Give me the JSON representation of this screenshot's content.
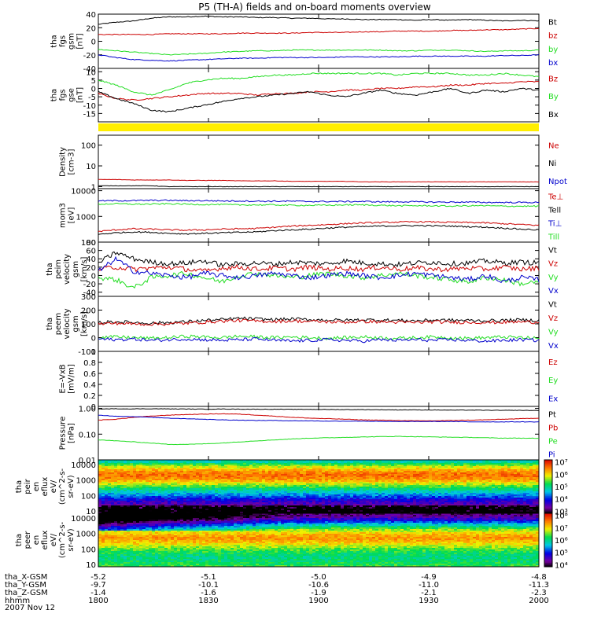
{
  "title": "P5 (TH-A) fields and on-board moments overview",
  "date_label": "2007 Nov 12",
  "colors": {
    "black": "#000000",
    "red": "#cc0000",
    "green": "#22dd22",
    "blue": "#0000cc",
    "yellow": "#ffee00"
  },
  "chart_data": [
    {
      "type": "line",
      "ylabel": [
        "tha",
        "fgs",
        "gsm",
        "[nT]"
      ],
      "ylim": [
        -40,
        40
      ],
      "yscale": "linear",
      "yticks": [
        -40,
        -20,
        0,
        20,
        40
      ],
      "series": [
        {
          "name": "Bt",
          "color": "black",
          "values": [
            25,
            28,
            30,
            34,
            36,
            36,
            37,
            36,
            36,
            35,
            35,
            34,
            34,
            33,
            33,
            32,
            32,
            32,
            31,
            32,
            31,
            32,
            31,
            30,
            31,
            30
          ]
        },
        {
          "name": "bz",
          "color": "red",
          "values": [
            10,
            10,
            10,
            10,
            11,
            11,
            11,
            11,
            12,
            12,
            12,
            12,
            13,
            13,
            13,
            14,
            14,
            15,
            15,
            15,
            16,
            16,
            17,
            17,
            18,
            19
          ]
        },
        {
          "name": "by",
          "color": "green",
          "values": [
            -12,
            -14,
            -16,
            -18,
            -20,
            -19,
            -18,
            -16,
            -15,
            -14,
            -14,
            -13,
            -13,
            -13,
            -13,
            -13,
            -13,
            -14,
            -14,
            -13,
            -13,
            -14,
            -15,
            -14,
            -14,
            -13
          ]
        },
        {
          "name": "bx",
          "color": "blue",
          "values": [
            -20,
            -24,
            -27,
            -28,
            -29,
            -28,
            -27,
            -26,
            -25,
            -25,
            -24,
            -24,
            -24,
            -24,
            -23,
            -23,
            -23,
            -23,
            -22,
            -22,
            -22,
            -22,
            -22,
            -21,
            -21,
            -20
          ]
        }
      ]
    },
    {
      "type": "line",
      "ylabel": [
        "tha",
        "fgs",
        "gse",
        "[nT]"
      ],
      "ylim": [
        -20,
        12
      ],
      "yscale": "linear",
      "yticks": [
        -15,
        -10,
        -5,
        0,
        5,
        10
      ],
      "series": [
        {
          "name": "Bz",
          "color": "red",
          "values": [
            -3,
            -6,
            -7,
            -6,
            -5,
            -4,
            -3,
            -3,
            -3,
            -4,
            -3,
            -3,
            -2,
            -2,
            -1,
            -1,
            0,
            0,
            1,
            1,
            2,
            2,
            3,
            3,
            4,
            4
          ]
        },
        {
          "name": "By",
          "color": "green",
          "values": [
            5,
            2,
            -2,
            -4,
            -1,
            3,
            5,
            6,
            6,
            7,
            8,
            8,
            9,
            9,
            9,
            9,
            9,
            8,
            9,
            9,
            9,
            8,
            8,
            9,
            8,
            7
          ]
        },
        {
          "name": "Bx",
          "color": "black",
          "values": [
            -2,
            -6,
            -9,
            -13,
            -14,
            -12,
            -10,
            -8,
            -6,
            -5,
            -4,
            -3,
            -2,
            -4,
            -5,
            -3,
            -1,
            -3,
            -4,
            -2,
            0,
            -3,
            -1,
            -2,
            0,
            -1
          ]
        }
      ]
    },
    {
      "type": "bar_strip",
      "color": "yellow"
    },
    {
      "type": "line",
      "ylabel": [
        "Density",
        "[cm-3]"
      ],
      "ylim": [
        0.8,
        300
      ],
      "yscale": "log",
      "yticks": [
        1,
        10,
        100
      ],
      "series": [
        {
          "name": "Ne",
          "color": "red",
          "values": [
            2.2,
            2.2,
            2.1,
            2.1,
            2.1,
            2.0,
            2.0,
            2.0,
            1.9,
            1.9,
            1.9,
            1.8,
            1.8,
            1.8,
            1.8,
            1.7,
            1.7,
            1.7,
            1.7,
            1.7,
            1.7,
            1.7,
            1.7,
            1.7,
            1.7,
            1.7
          ]
        },
        {
          "name": "Ni",
          "color": "black",
          "values": [
            1.1,
            1.1,
            1.1,
            1.1,
            1.0,
            1.0,
            1.0,
            1.0,
            1.0,
            1.0,
            1.0,
            1.0,
            1.0,
            1.0,
            1.0,
            1.0,
            1.0,
            1.0,
            1.0,
            1.0,
            1.0,
            1.0,
            1.0,
            1.0,
            1.0,
            1.0
          ]
        },
        {
          "name": "Npot",
          "color": "blue",
          "values": []
        }
      ]
    },
    {
      "type": "line",
      "ylabel": [
        "mom3",
        "[eV]"
      ],
      "ylim": [
        100,
        12000
      ],
      "yscale": "log",
      "yticks": [
        100,
        1000,
        10000
      ],
      "series": [
        {
          "name": "Te⊥",
          "color": "red",
          "values": [
            260,
            300,
            330,
            320,
            300,
            290,
            300,
            320,
            330,
            340,
            380,
            420,
            450,
            480,
            520,
            560,
            580,
            600,
            620,
            610,
            590,
            580,
            560,
            520,
            480,
            450
          ]
        },
        {
          "name": "Tell",
          "color": "black",
          "values": [
            200,
            230,
            250,
            240,
            220,
            210,
            220,
            230,
            240,
            250,
            280,
            300,
            320,
            350,
            380,
            400,
            420,
            430,
            440,
            430,
            420,
            400,
            380,
            350,
            320,
            300
          ]
        },
        {
          "name": "Ti⊥",
          "color": "blue",
          "values": [
            4000,
            4100,
            4100,
            4200,
            4200,
            4100,
            4100,
            4000,
            4000,
            3900,
            3900,
            3900,
            3800,
            3800,
            3800,
            3800,
            3700,
            3700,
            3700,
            3600,
            3600,
            3600,
            3500,
            3500,
            3500,
            3500
          ]
        },
        {
          "name": "Till",
          "color": "green",
          "values": [
            3000,
            3100,
            3000,
            3000,
            3100,
            3000,
            2900,
            2900,
            2800,
            2800,
            2800,
            2700,
            2700,
            2700,
            2800,
            2800,
            2700,
            2600,
            2600,
            2600,
            2500,
            2600,
            2600,
            2500,
            2500,
            2500
          ]
        }
      ]
    },
    {
      "type": "line",
      "ylabel": [
        "tha",
        "peim",
        "velocity",
        "gsm",
        "[km/s]"
      ],
      "ylim": [
        -50,
        80
      ],
      "yscale": "linear",
      "yticks": [
        -40,
        -20,
        0,
        20,
        40,
        60,
        80
      ],
      "series": [
        {
          "name": "Vt",
          "color": "black",
          "values": [
            30,
            55,
            40,
            32,
            28,
            30,
            35,
            25,
            28,
            30,
            27,
            32,
            30,
            28,
            35,
            30,
            28,
            26,
            30,
            32,
            28,
            30,
            35,
            30,
            32,
            30
          ]
        },
        {
          "name": "Vz",
          "color": "red",
          "values": [
            15,
            20,
            15,
            18,
            20,
            15,
            10,
            18,
            20,
            15,
            18,
            15,
            20,
            15,
            18,
            15,
            20,
            15,
            18,
            15,
            15,
            18,
            15,
            20,
            15,
            18
          ]
        },
        {
          "name": "Vy",
          "color": "green",
          "values": [
            -5,
            -10,
            -30,
            -5,
            0,
            5,
            -5,
            -15,
            0,
            5,
            0,
            -5,
            0,
            5,
            0,
            -5,
            0,
            5,
            0,
            -5,
            -10,
            -15,
            -5,
            -10,
            -20,
            -15
          ]
        },
        {
          "name": "Vx",
          "color": "blue",
          "values": [
            10,
            40,
            10,
            5,
            0,
            -5,
            5,
            0,
            -5,
            0,
            5,
            0,
            -5,
            0,
            5,
            0,
            -5,
            0,
            5,
            0,
            -5,
            -10,
            0,
            -15,
            -5,
            -10
          ]
        }
      ]
    },
    {
      "type": "line",
      "ylabel": [
        "tha",
        "peem",
        "velocity",
        "gsm",
        "[km/s]"
      ],
      "ylim": [
        -100,
        300
      ],
      "yscale": "linear",
      "yticks": [
        -100,
        0,
        100,
        200,
        300
      ],
      "series": [
        {
          "name": "Vt",
          "color": "black",
          "values": [
            110,
            115,
            110,
            105,
            110,
            115,
            125,
            130,
            140,
            135,
            130,
            135,
            130,
            128,
            125,
            130,
            128,
            125,
            122,
            128,
            126,
            125,
            122,
            125,
            128,
            125
          ]
        },
        {
          "name": "Vz",
          "color": "red",
          "values": [
            100,
            105,
            100,
            98,
            100,
            105,
            112,
            120,
            125,
            120,
            118,
            122,
            118,
            115,
            112,
            118,
            115,
            112,
            110,
            115,
            112,
            112,
            110,
            112,
            115,
            112
          ]
        },
        {
          "name": "Vy",
          "color": "green",
          "values": [
            0,
            5,
            0,
            -5,
            0,
            10,
            5,
            0,
            10,
            5,
            0,
            5,
            0,
            -5,
            0,
            5,
            0,
            -5,
            0,
            5,
            0,
            -5,
            0,
            5,
            0,
            -5
          ]
        },
        {
          "name": "Vx",
          "color": "blue",
          "values": [
            -10,
            -15,
            -10,
            -20,
            -15,
            -10,
            -15,
            -20,
            -15,
            -10,
            -20,
            -25,
            -20,
            -15,
            -20,
            -25,
            -15,
            -20,
            -15,
            -20,
            -15,
            -20,
            -25,
            -20,
            -15,
            -20
          ]
        }
      ]
    },
    {
      "type": "line",
      "ylabel": [
        "E=-VxB",
        "[mV/m]"
      ],
      "ylim": [
        0,
        1
      ],
      "yscale": "linear",
      "yticks": [
        0.0,
        0.2,
        0.4,
        0.6,
        0.8,
        1.0
      ],
      "series": [
        {
          "name": "Ez",
          "color": "red",
          "values": []
        },
        {
          "name": "Ey",
          "color": "green",
          "values": []
        },
        {
          "name": "Ex",
          "color": "blue",
          "values": []
        }
      ]
    },
    {
      "type": "line",
      "ylabel": [
        "Pressure",
        "[nPa]"
      ],
      "ylim": [
        0.01,
        1.2
      ],
      "yscale": "log",
      "yticks": [
        0.01,
        0.1,
        1.0
      ],
      "ytick_labels": [
        "0.01",
        "0.10",
        "1.00"
      ],
      "series": [
        {
          "name": "Pt",
          "color": "black",
          "values": [
            0.95,
            0.97,
            0.96,
            0.97,
            0.96,
            0.95,
            0.94,
            0.95,
            0.94,
            0.93,
            0.93,
            0.92,
            0.92,
            0.91,
            0.9,
            0.9,
            0.89,
            0.88,
            0.88,
            0.87,
            0.86,
            0.86,
            0.85,
            0.84,
            0.84,
            0.83
          ]
        },
        {
          "name": "Pb",
          "color": "red",
          "values": [
            0.35,
            0.38,
            0.45,
            0.5,
            0.55,
            0.58,
            0.6,
            0.62,
            0.6,
            0.55,
            0.5,
            0.45,
            0.42,
            0.4,
            0.38,
            0.36,
            0.35,
            0.34,
            0.33,
            0.33,
            0.34,
            0.35,
            0.36,
            0.38,
            0.4,
            0.42
          ]
        },
        {
          "name": "Pe",
          "color": "green",
          "values": [
            0.06,
            0.055,
            0.05,
            0.045,
            0.04,
            0.04,
            0.042,
            0.045,
            0.05,
            0.055,
            0.06,
            0.065,
            0.07,
            0.072,
            0.075,
            0.078,
            0.08,
            0.082,
            0.08,
            0.078,
            0.076,
            0.075,
            0.072,
            0.07,
            0.07,
            0.068
          ]
        },
        {
          "name": "Pi",
          "color": "blue",
          "values": [
            0.55,
            0.5,
            0.48,
            0.45,
            0.42,
            0.4,
            0.38,
            0.36,
            0.35,
            0.34,
            0.34,
            0.33,
            0.33,
            0.32,
            0.32,
            0.32,
            0.31,
            0.31,
            0.31,
            0.31,
            0.31,
            0.3,
            0.3,
            0.3,
            0.3,
            0.3
          ]
        }
      ]
    },
    {
      "type": "heatmap",
      "ylabel": [
        "tha",
        "peir",
        "en",
        "eflux",
        "eV/",
        "(cm^2-s-",
        "sr-eV)"
      ],
      "ylim": [
        7,
        20000
      ],
      "yscale": "log",
      "yticks": [
        10,
        100,
        1000,
        10000
      ],
      "colorbar_ticks": [
        "10³",
        "10⁴",
        "10⁵",
        "10⁶",
        "10⁷"
      ],
      "colorbar_exp": [
        3,
        4,
        5,
        6,
        7
      ],
      "energy_profile": [
        {
          "e": 15000,
          "v": 4.8
        },
        {
          "e": 8000,
          "v": 5.6
        },
        {
          "e": 4000,
          "v": 6.2
        },
        {
          "e": 2000,
          "v": 6.5
        },
        {
          "e": 1000,
          "v": 6.2
        },
        {
          "e": 500,
          "v": 5.6
        },
        {
          "e": 250,
          "v": 5.0
        },
        {
          "e": 120,
          "v": 4.5
        },
        {
          "e": 60,
          "v": 4.0
        },
        {
          "e": 30,
          "v": 3.6
        },
        {
          "e": 15,
          "v": 3.2
        },
        {
          "e": 8,
          "v": 3.0
        }
      ]
    },
    {
      "type": "heatmap",
      "ylabel": [
        "tha",
        "peer",
        "en",
        "eflux",
        "eV/",
        "(cm^2-s-",
        "sr-eV)"
      ],
      "ylim": [
        7,
        20000
      ],
      "yscale": "log",
      "yticks": [
        10,
        100,
        1000,
        10000
      ],
      "colorbar_ticks": [
        "10⁴",
        "10⁵",
        "10⁶",
        "10⁷",
        "10⁸"
      ],
      "colorbar_exp": [
        4,
        5,
        6,
        7,
        8
      ],
      "energy_profile": [
        {
          "e": 15000,
          "v": 4.3
        },
        {
          "e": 8000,
          "v": 4.8
        },
        {
          "e": 4000,
          "v": 5.6
        },
        {
          "e": 2000,
          "v": 6.4
        },
        {
          "e": 1000,
          "v": 7.0
        },
        {
          "e": 500,
          "v": 7.3
        },
        {
          "e": 250,
          "v": 7.0
        },
        {
          "e": 120,
          "v": 6.5
        },
        {
          "e": 60,
          "v": 6.2
        },
        {
          "e": 30,
          "v": 6.0
        },
        {
          "e": 15,
          "v": 6.1
        },
        {
          "e": 8,
          "v": 6.3
        }
      ]
    }
  ],
  "x_axis": {
    "rows": [
      {
        "label": "tha_X-GSM",
        "values": [
          "-5.2",
          "-5.1",
          "-5.0",
          "-4.9",
          "-4.8"
        ]
      },
      {
        "label": "tha_Y-GSM",
        "values": [
          "-9.7",
          "-10.1",
          "-10.6",
          "-11.0",
          "-11.3"
        ]
      },
      {
        "label": "tha_Z-GSM",
        "values": [
          "-1.4",
          "-1.6",
          "-1.9",
          "-2.1",
          "-2.3"
        ]
      },
      {
        "label": "hhmm",
        "values": [
          "1800",
          "1830",
          "1900",
          "1930",
          "2000"
        ]
      }
    ]
  }
}
